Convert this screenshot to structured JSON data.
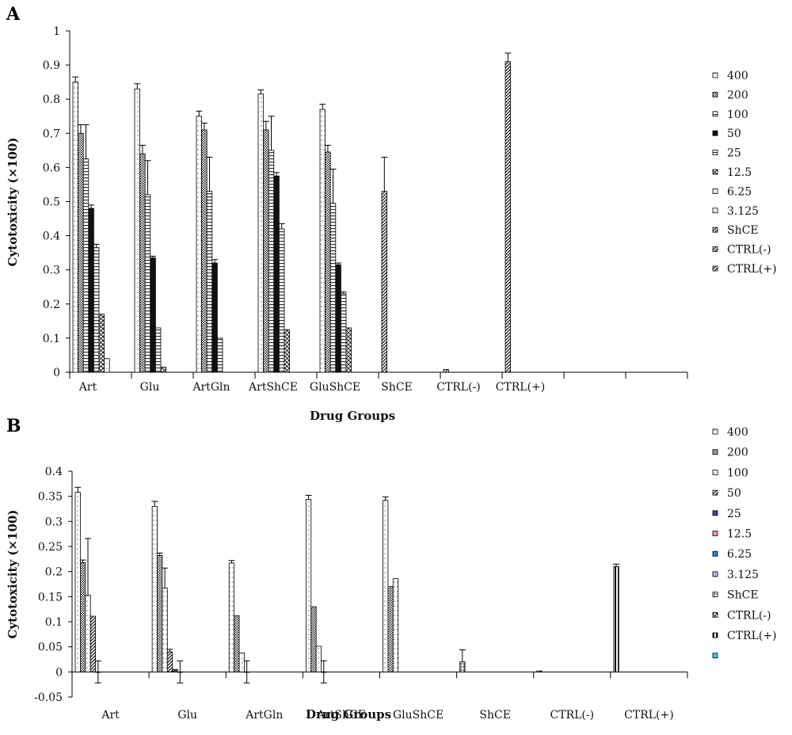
{
  "chart_data": [
    {
      "panel": "A",
      "type": "bar",
      "xlabel": "Drug Groups",
      "ylabel": "Cytotoxicity (×100)",
      "ylim": [
        0,
        1
      ],
      "yticks": [
        0,
        0.1,
        0.2,
        0.3,
        0.4,
        0.5,
        0.6,
        0.7,
        0.8,
        0.9,
        1
      ],
      "ytick_labels": [
        "0",
        "0.1",
        "0.2",
        "0.3",
        "0.4",
        "0.5",
        "0.6",
        "0.7",
        "0.8",
        "0.9",
        "1"
      ],
      "grid": false,
      "legend_position": "right",
      "categories": [
        "Art",
        "Glu",
        "ArtGln",
        "ArtShCE",
        "GluShCE",
        "ShCE",
        "CTRL(-)",
        "CTRL(+)"
      ],
      "series": [
        {
          "name": "400",
          "color": "#ffffff",
          "pattern": "dots",
          "values": [
            0.85,
            0.83,
            0.75,
            0.815,
            0.77,
            null,
            null,
            null
          ],
          "errors": [
            0.015,
            0.015,
            0.015,
            0.012,
            0.015,
            null,
            null,
            null
          ]
        },
        {
          "name": "200",
          "color": "#ffffff",
          "pattern": "dense",
          "values": [
            0.7,
            0.64,
            0.71,
            0.71,
            0.645,
            null,
            null,
            null
          ],
          "errors": [
            0.025,
            0.025,
            0.02,
            0.025,
            0.02,
            null,
            null,
            null
          ]
        },
        {
          "name": "100",
          "color": "#ffffff",
          "pattern": "hstripe",
          "values": [
            0.625,
            0.52,
            0.53,
            0.65,
            0.495,
            null,
            null,
            null
          ],
          "errors": [
            0.1,
            0.1,
            0.1,
            0.1,
            0.1,
            null,
            null,
            null
          ]
        },
        {
          "name": "50",
          "color": "#111111",
          "pattern": "solid",
          "values": [
            0.48,
            0.335,
            0.32,
            0.575,
            0.315,
            null,
            null,
            null
          ],
          "errors": [
            0.01,
            0.005,
            0.01,
            0.01,
            0.005,
            null,
            null,
            null
          ]
        },
        {
          "name": "25",
          "color": "#ffffff",
          "pattern": "hstripe",
          "values": [
            0.365,
            0.13,
            0.1,
            0.42,
            0.23,
            null,
            null,
            null
          ],
          "errors": [
            0.01,
            0,
            0,
            0.015,
            0.005,
            null,
            null,
            null
          ]
        },
        {
          "name": "12.5",
          "color": "#ffffff",
          "pattern": "cross",
          "values": [
            0.17,
            0.015,
            null,
            0.125,
            0.13,
            null,
            null,
            null
          ],
          "errors": [
            0,
            0,
            null,
            0,
            0,
            null,
            null,
            null
          ]
        },
        {
          "name": "6.25",
          "color": "#ffffff",
          "pattern": "dots",
          "values": [
            0.04,
            null,
            null,
            null,
            null,
            null,
            null,
            null
          ],
          "errors": [
            0,
            null,
            null,
            null,
            null,
            null,
            null,
            null
          ]
        },
        {
          "name": "3.125",
          "color": "#ffffff",
          "pattern": "dots",
          "values": [
            null,
            null,
            null,
            null,
            null,
            null,
            null,
            null
          ],
          "errors": [
            null,
            null,
            null,
            null,
            null,
            null,
            null,
            null
          ]
        },
        {
          "name": "ShCE",
          "color": "#ffffff",
          "pattern": "diag",
          "values": [
            null,
            null,
            null,
            null,
            null,
            0.53,
            null,
            null
          ],
          "errors": [
            null,
            null,
            null,
            null,
            null,
            0.1,
            null,
            null
          ]
        },
        {
          "name": "CTRL(-)",
          "color": "#ffffff",
          "pattern": "diag",
          "values": [
            null,
            null,
            null,
            null,
            null,
            null,
            0.008,
            null
          ],
          "errors": [
            null,
            null,
            null,
            null,
            null,
            null,
            0,
            null
          ]
        },
        {
          "name": "CTRL(+)",
          "color": "#ffffff",
          "pattern": "diag",
          "values": [
            null,
            null,
            null,
            null,
            null,
            null,
            null,
            0.91
          ],
          "errors": [
            null,
            null,
            null,
            null,
            null,
            null,
            null,
            0.025
          ]
        }
      ]
    },
    {
      "panel": "B",
      "type": "bar",
      "xlabel": "Drug Groups",
      "ylabel": "Cytotoxicity (×100)",
      "ylim": [
        -0.05,
        0.4
      ],
      "yticks": [
        -0.05,
        0,
        0.05,
        0.1,
        0.15,
        0.2,
        0.25,
        0.3,
        0.35,
        0.4
      ],
      "ytick_labels": [
        "-0.05",
        "0",
        "0.05",
        "0.1",
        "0.15",
        "0.2",
        "0.25",
        "0.3",
        "0.35",
        "0.4"
      ],
      "grid": false,
      "legend_position": "right",
      "categories": [
        "Art",
        "Glu",
        "ArtGln",
        "ArtShCE",
        "GluShCE",
        "ShCE",
        "CTRL(-)",
        "CTRL(+)"
      ],
      "series": [
        {
          "name": "400",
          "color": "#ffffff",
          "pattern": "dots",
          "values": [
            0.358,
            0.33,
            0.217,
            0.344,
            0.342,
            null,
            null,
            null
          ],
          "errors": [
            0.01,
            0.01,
            0.005,
            0.008,
            0.007,
            null,
            null,
            null
          ]
        },
        {
          "name": "200",
          "color": "#ffffff",
          "pattern": "dense",
          "values": [
            0.218,
            0.232,
            0.112,
            0.13,
            0.17,
            null,
            null,
            null
          ],
          "errors": [
            0.005,
            0.005,
            0,
            0,
            0,
            null,
            null,
            null
          ]
        },
        {
          "name": "100",
          "color": "#ffffff",
          "pattern": "dots",
          "values": [
            0.153,
            0.167,
            0.038,
            0.051,
            0.186,
            null,
            null,
            null
          ],
          "errors": [
            0.113,
            0.04,
            0,
            0,
            0,
            null,
            null,
            null
          ]
        },
        {
          "name": "50",
          "color": "#ffffff",
          "pattern": "diag",
          "values": [
            0.111,
            0.04,
            null,
            null,
            null,
            null,
            null,
            null
          ],
          "errors": [
            0,
            0.005,
            null,
            null,
            null,
            null,
            null,
            null
          ]
        },
        {
          "name": "25",
          "color": "#5a3a8a",
          "pattern": "solid",
          "values": [
            null,
            0.005,
            null,
            null,
            null,
            null,
            null,
            null
          ],
          "errors": [
            null,
            0,
            null,
            null,
            null,
            null,
            null,
            null
          ]
        },
        {
          "name": "12.5",
          "color": "#e89a9a",
          "pattern": "solid",
          "values": [
            null,
            null,
            null,
            null,
            null,
            null,
            null,
            null
          ],
          "errors": [
            null,
            null,
            null,
            null,
            null,
            null,
            null,
            null
          ]
        },
        {
          "name": "6.25",
          "color": "#2e86c8",
          "pattern": "solid",
          "values": [
            0,
            0,
            0,
            0,
            null,
            null,
            null,
            null
          ],
          "errors": [
            0.022,
            0.022,
            0.022,
            0.022,
            null,
            null,
            null,
            null
          ]
        },
        {
          "name": "3.125",
          "color": "#aab8e0",
          "pattern": "solid",
          "values": [
            null,
            null,
            null,
            null,
            null,
            null,
            null,
            null
          ],
          "errors": [
            null,
            null,
            null,
            null,
            null,
            null,
            null,
            null
          ]
        },
        {
          "name": "ShCE",
          "color": "#ffffff",
          "pattern": "grid",
          "values": [
            null,
            null,
            null,
            null,
            null,
            0.02,
            null,
            null
          ],
          "errors": [
            null,
            null,
            null,
            null,
            null,
            0.024,
            null,
            null
          ]
        },
        {
          "name": "CTRL(-)",
          "color": "#ffffff",
          "pattern": "cross",
          "values": [
            null,
            null,
            null,
            null,
            null,
            null,
            0.002,
            null
          ],
          "errors": [
            null,
            null,
            null,
            null,
            null,
            null,
            0,
            null
          ]
        },
        {
          "name": "CTRL(+)",
          "color": "#ffffff",
          "pattern": "vstripe",
          "values": [
            null,
            null,
            null,
            null,
            null,
            null,
            null,
            0.21
          ],
          "errors": [
            null,
            null,
            null,
            null,
            null,
            null,
            null,
            0.005
          ]
        },
        {
          "name": "",
          "color": "#3ecbd0",
          "pattern": "solid",
          "values": [
            null,
            null,
            null,
            null,
            null,
            null,
            null,
            null
          ],
          "errors": [
            null,
            null,
            null,
            null,
            null,
            null,
            null,
            null
          ]
        }
      ]
    }
  ]
}
